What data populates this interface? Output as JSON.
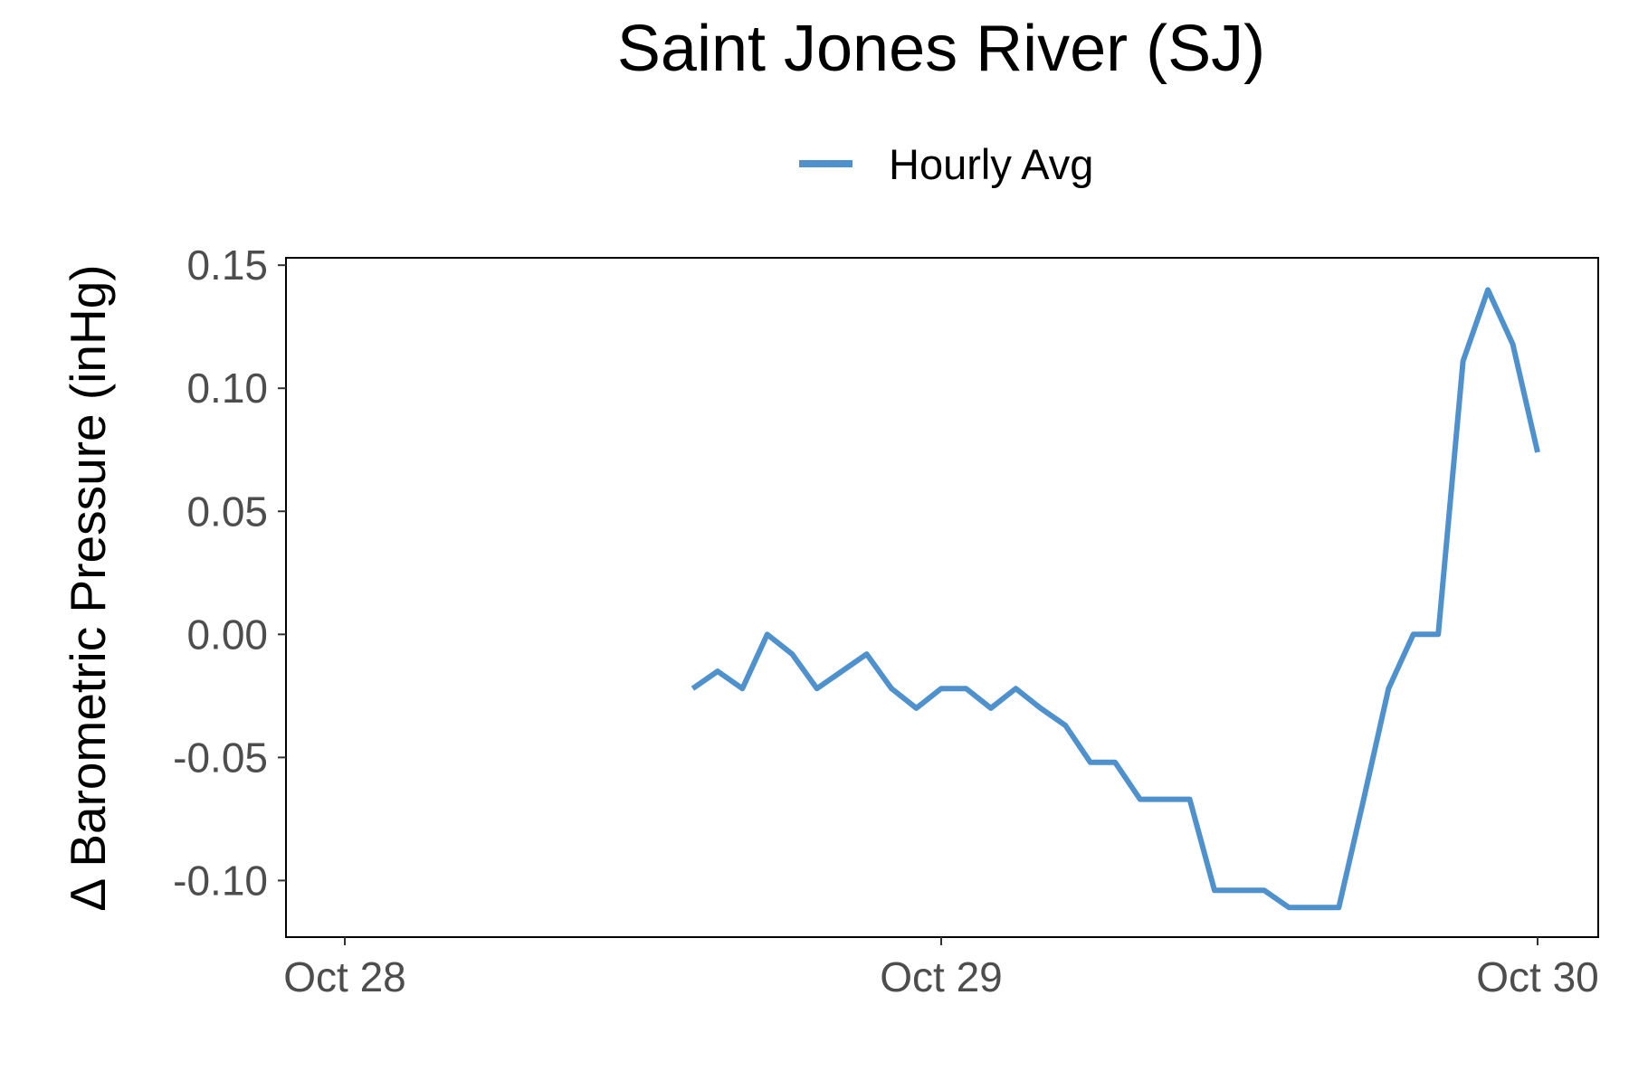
{
  "chart_data": {
    "type": "line",
    "title": "Saint Jones River (SJ)",
    "xlabel": "",
    "ylabel": "Δ Barometric Pressure (inHg)",
    "legend": {
      "position": "top",
      "entries": [
        "Hourly Avg"
      ]
    },
    "grid": false,
    "x_ticks": [
      "Oct 28",
      "Oct 29",
      "Oct 30"
    ],
    "x_range": [
      "2019-10-28 00:00",
      "2019-10-30 00:00"
    ],
    "y_ticks": [
      "-0.10",
      "-0.05",
      "0.00",
      "0.05",
      "0.10",
      "0.15"
    ],
    "ylim": [
      -0.123,
      0.153
    ],
    "series": [
      {
        "name": "Hourly Avg",
        "color": "#4f91cd",
        "x": [
          "2019-10-28 14:00",
          "2019-10-28 15:00",
          "2019-10-28 16:00",
          "2019-10-28 17:00",
          "2019-10-28 18:00",
          "2019-10-28 19:00",
          "2019-10-28 20:00",
          "2019-10-28 21:00",
          "2019-10-28 22:00",
          "2019-10-28 23:00",
          "2019-10-29 00:00",
          "2019-10-29 01:00",
          "2019-10-29 02:00",
          "2019-10-29 03:00",
          "2019-10-29 04:00",
          "2019-10-29 05:00",
          "2019-10-29 06:00",
          "2019-10-29 07:00",
          "2019-10-29 08:00",
          "2019-10-29 09:00",
          "2019-10-29 10:00",
          "2019-10-29 11:00",
          "2019-10-29 12:00",
          "2019-10-29 13:00",
          "2019-10-29 14:00",
          "2019-10-29 15:00",
          "2019-10-29 16:00",
          "2019-10-29 17:00",
          "2019-10-29 18:00",
          "2019-10-29 19:00",
          "2019-10-29 20:00",
          "2019-10-29 21:00",
          "2019-10-29 22:00",
          "2019-10-29 23:00",
          "2019-10-30 00:00"
        ],
        "values": [
          -0.022,
          -0.015,
          -0.022,
          0.0,
          -0.008,
          -0.022,
          -0.015,
          -0.008,
          -0.022,
          -0.03,
          -0.022,
          -0.022,
          -0.03,
          -0.022,
          -0.03,
          -0.037,
          -0.052,
          -0.052,
          -0.067,
          -0.067,
          -0.067,
          -0.104,
          -0.104,
          -0.104,
          -0.111,
          -0.111,
          -0.111,
          -0.067,
          -0.022,
          0.0,
          0.0,
          0.111,
          0.14,
          0.118,
          0.074
        ]
      }
    ]
  }
}
